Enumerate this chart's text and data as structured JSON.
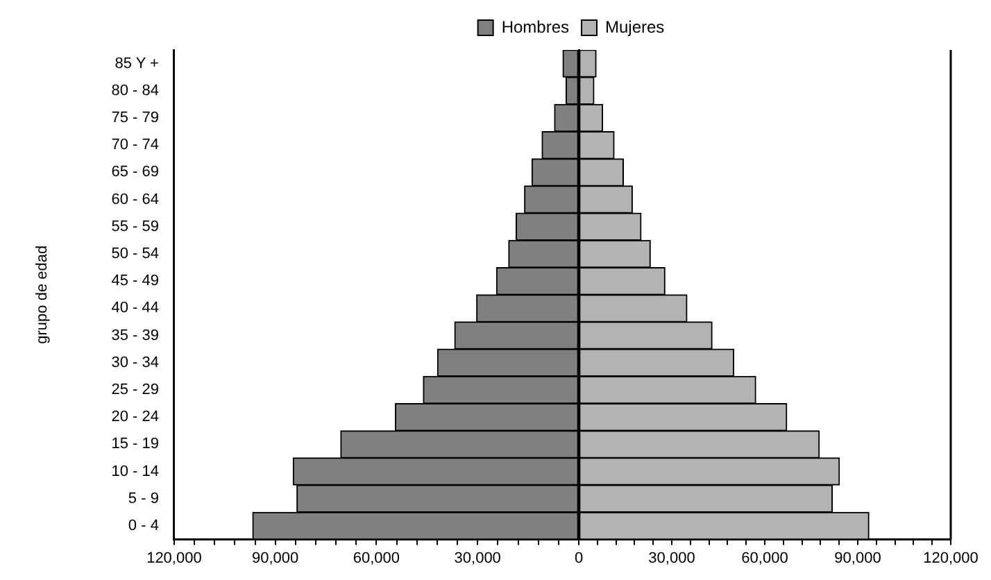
{
  "chart_data": [
    {
      "type": "bar",
      "orientation": "horizontal",
      "ylabel": "grupo de edad",
      "legend": "top right",
      "categories": [
        "85 Y +",
        "80 - 84",
        "75 - 79",
        "70 - 74",
        "65 - 69",
        "60 - 64",
        "55 - 59",
        "50 - 54",
        "45 - 49",
        "40 - 44",
        "35 - 39",
        "30 - 34",
        "25 - 29",
        "20 - 24",
        "15 - 19",
        "10 - 14",
        "5 - 9",
        "0 - 4"
      ],
      "series": [
        {
          "name": "Hombres",
          "color": "#808080",
          "values": [
            4700,
            3800,
            7200,
            10900,
            13900,
            16100,
            18600,
            20800,
            24400,
            30300,
            36800,
            41900,
            46100,
            54400,
            70600,
            84700,
            83600,
            96700
          ]
        }
      ],
      "xlim": [
        120000,
        0
      ],
      "xticks": [
        {
          "value": 120000,
          "label": "120,000"
        },
        {
          "value": 114000,
          "label": null
        },
        {
          "value": 108000,
          "label": null
        },
        {
          "value": 102000,
          "label": null
        },
        {
          "value": 96000,
          "label": null
        },
        {
          "value": 90000,
          "label": "90,000"
        },
        {
          "value": 84000,
          "label": null
        },
        {
          "value": 78000,
          "label": null
        },
        {
          "value": 72000,
          "label": null
        },
        {
          "value": 66000,
          "label": null
        },
        {
          "value": 60000,
          "label": "60,000"
        },
        {
          "value": 54000,
          "label": null
        },
        {
          "value": 48000,
          "label": null
        },
        {
          "value": 42000,
          "label": null
        },
        {
          "value": 36000,
          "label": null
        },
        {
          "value": 30000,
          "label": "30,000"
        },
        {
          "value": 24000,
          "label": null
        },
        {
          "value": 18000,
          "label": null
        },
        {
          "value": 12000,
          "label": null
        },
        {
          "value": 6000,
          "label": null
        },
        {
          "value": 0,
          "label": null
        }
      ]
    },
    {
      "type": "bar",
      "orientation": "horizontal",
      "legend": "top left",
      "tick_labels": "x",
      "categories": [
        null,
        null,
        null,
        null,
        null,
        null,
        null,
        null,
        null,
        null,
        null,
        null,
        null,
        null,
        null,
        null,
        null,
        null
      ],
      "series": [
        {
          "name": "Mujeres",
          "color": "#b3b3b3",
          "values": [
            5600,
            4900,
            7700,
            11400,
            14400,
            17300,
            20100,
            23100,
            27800,
            34900,
            43000,
            50000,
            57100,
            67100,
            77600,
            84100,
            81800,
            93600
          ]
        }
      ],
      "xlim": [
        0,
        120000
      ],
      "xticks": [
        0,
        {
          "value": 6000,
          "label": null
        },
        {
          "value": 12000,
          "label": null
        },
        {
          "value": 18000,
          "label": null
        },
        {
          "value": 24000,
          "label": null
        },
        {
          "value": 30000,
          "label": "30,000"
        },
        {
          "value": 36000,
          "label": null
        },
        {
          "value": 42000,
          "label": null
        },
        {
          "value": 48000,
          "label": null
        },
        {
          "value": 54000,
          "label": null
        },
        {
          "value": 60000,
          "label": "60,000"
        },
        {
          "value": 66000,
          "label": null
        },
        {
          "value": 72000,
          "label": null
        },
        {
          "value": 78000,
          "label": null
        },
        {
          "value": 84000,
          "label": null
        },
        {
          "value": 90000,
          "label": "90,000"
        },
        {
          "value": 96000,
          "label": null
        },
        {
          "value": 102000,
          "label": null
        },
        {
          "value": 108000,
          "label": null
        },
        {
          "value": 114000,
          "label": null
        },
        {
          "value": 120000,
          "label": "120,000"
        }
      ]
    }
  ]
}
